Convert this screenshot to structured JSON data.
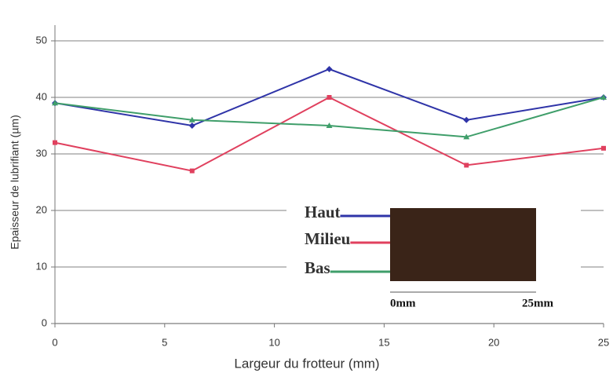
{
  "chart_data": {
    "type": "line",
    "x_label": "Largeur du frotteur (mm)",
    "y_label": "Epaisseur de lubrifiant (µm)",
    "x": [
      0,
      6.25,
      12.5,
      18.75,
      25
    ],
    "series": [
      {
        "name": "Haut",
        "color": "#2f34a8",
        "marker": "diamond",
        "values": [
          39,
          35,
          45,
          36,
          40
        ]
      },
      {
        "name": "Milieu",
        "color": "#e0405e",
        "marker": "square",
        "values": [
          32,
          27,
          40,
          28,
          31
        ]
      },
      {
        "name": "Bas",
        "color": "#3f9e6a",
        "marker": "triangle",
        "values": [
          39,
          36,
          35,
          33,
          40
        ]
      }
    ],
    "xlim": [
      0,
      25
    ],
    "xticks": [
      0,
      5,
      10,
      15,
      20,
      25
    ],
    "ylim": [
      0,
      50
    ],
    "yticks": [
      0,
      10,
      20,
      30,
      40,
      50
    ],
    "grid": true,
    "inset_labels": [
      "0mm",
      "25mm"
    ]
  }
}
